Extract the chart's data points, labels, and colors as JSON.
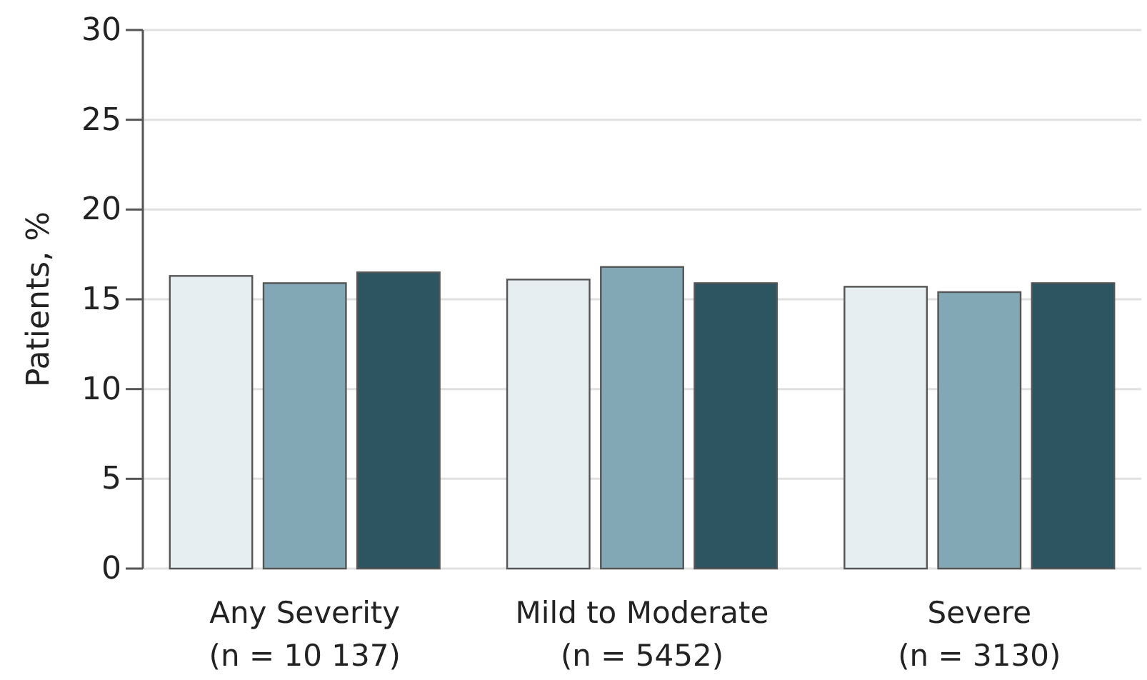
{
  "chart_data": {
    "type": "bar",
    "ylabel": "Patients, %",
    "categories": [
      "Any Severity\n(n = 10 137)",
      "Mild to Moderate\n(n = 5452)",
      "Severe\n(n = 3130)"
    ],
    "series": [
      {
        "color": "#e6eef2",
        "values": [
          16.3,
          16.1,
          15.7
        ]
      },
      {
        "color": "#82a8b6",
        "values": [
          15.9,
          16.8,
          15.4
        ]
      },
      {
        "color": "#2d5461",
        "values": [
          16.5,
          15.9,
          15.9
        ]
      }
    ],
    "ylim": [
      0,
      30
    ],
    "yticks": [
      0,
      5,
      10,
      15,
      20,
      25,
      30
    ],
    "grid": "y"
  }
}
